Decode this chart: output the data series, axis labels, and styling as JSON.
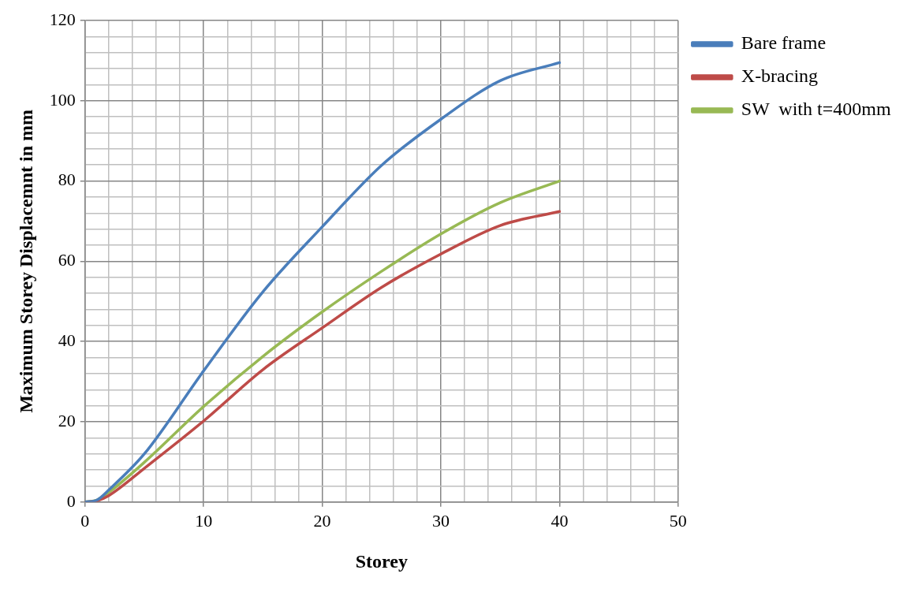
{
  "chart_data": {
    "type": "line",
    "xlabel": "Storey",
    "ylabel": "Maximum Storey Displacemnt in mm",
    "x": [
      0,
      1,
      2,
      5,
      10,
      15,
      20,
      25,
      30,
      35,
      40
    ],
    "series": [
      {
        "name": "Bare frame",
        "color": "#4a7ebb",
        "values": [
          0,
          0.5,
          3,
          12,
          32.7,
          52.4,
          68.6,
          83.9,
          95.4,
          105,
          109.5
        ]
      },
      {
        "name": "X-bracing",
        "color": "#be4b48",
        "values": [
          0,
          0.3,
          1.6,
          8.4,
          20.2,
          33,
          43.4,
          53.5,
          61.8,
          68.9,
          72.4
        ]
      },
      {
        "name": "SW  with t=400mm",
        "color": "#98b954",
        "values": [
          0,
          0.5,
          2.4,
          9.9,
          23.8,
          36.3,
          47.4,
          57.5,
          66.8,
          74.6,
          80
        ]
      }
    ],
    "xlim": [
      0,
      50
    ],
    "ylim": [
      0,
      120
    ],
    "xticks": [
      0,
      {
        "value": 2,
        "label": null
      },
      {
        "value": 4,
        "label": null
      },
      {
        "value": 6,
        "label": null
      },
      {
        "value": 8,
        "label": null
      },
      10,
      {
        "value": 12,
        "label": null
      },
      {
        "value": 14,
        "label": null
      },
      {
        "value": 16,
        "label": null
      },
      {
        "value": 18,
        "label": null
      },
      20,
      {
        "value": 22,
        "label": null
      },
      {
        "value": 24,
        "label": null
      },
      {
        "value": 26,
        "label": null
      },
      {
        "value": 28,
        "label": null
      },
      30,
      {
        "value": 32,
        "label": null
      },
      {
        "value": 34,
        "label": null
      },
      {
        "value": 36,
        "label": null
      },
      {
        "value": 38,
        "label": null
      },
      40,
      {
        "value": 42,
        "label": null
      },
      {
        "value": 44,
        "label": null
      },
      {
        "value": 46,
        "label": null
      },
      {
        "value": 48,
        "label": null
      },
      50
    ],
    "yticks": [
      0,
      {
        "value": 4,
        "label": null
      },
      {
        "value": 8,
        "label": null
      },
      {
        "value": 12,
        "label": null
      },
      {
        "value": 16,
        "label": null
      },
      20,
      {
        "value": 24,
        "label": null
      },
      {
        "value": 28,
        "label": null
      },
      {
        "value": 32,
        "label": null
      },
      {
        "value": 36,
        "label": null
      },
      40,
      {
        "value": 44,
        "label": null
      },
      {
        "value": 48,
        "label": null
      },
      {
        "value": 52,
        "label": null
      },
      {
        "value": 56,
        "label": null
      },
      60,
      {
        "value": 64,
        "label": null
      },
      {
        "value": 68,
        "label": null
      },
      {
        "value": 72,
        "label": null
      },
      {
        "value": 76,
        "label": null
      },
      80,
      {
        "value": 84,
        "label": null
      },
      {
        "value": 88,
        "label": null
      },
      {
        "value": 92,
        "label": null
      },
      {
        "value": 96,
        "label": null
      },
      100,
      {
        "value": 104,
        "label": null
      },
      {
        "value": 108,
        "label": null
      },
      {
        "value": 112,
        "label": null
      },
      {
        "value": 116,
        "label": null
      },
      120
    ],
    "grid": true,
    "legend": "right",
    "marker": "none",
    "line_style": "solid"
  }
}
